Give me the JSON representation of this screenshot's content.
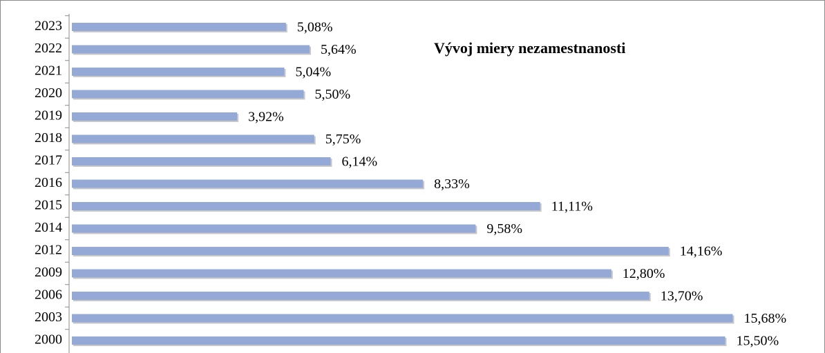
{
  "chart_data": {
    "type": "bar",
    "orientation": "horizontal",
    "title": "Vývoj miery nezamestnanosti",
    "categories": [
      "2023",
      "2022",
      "2021",
      "2020",
      "2019",
      "2018",
      "2017",
      "2016",
      "2015",
      "2014",
      "2012",
      "2009",
      "2006",
      "2003",
      "2000"
    ],
    "values": [
      5.08,
      5.64,
      5.04,
      5.5,
      3.92,
      5.75,
      6.14,
      8.33,
      11.11,
      9.58,
      14.16,
      12.8,
      13.7,
      15.68,
      15.5
    ],
    "value_labels": [
      "5,08%",
      "5,64%",
      "5,04%",
      "5,50%",
      "3,92%",
      "5,75%",
      "6,14%",
      "8,33%",
      "11,11%",
      "9,58%",
      "14,16%",
      "12,80%",
      "13,70%",
      "15,68%",
      "15,50%"
    ],
    "color": "#94a9d5"
  }
}
